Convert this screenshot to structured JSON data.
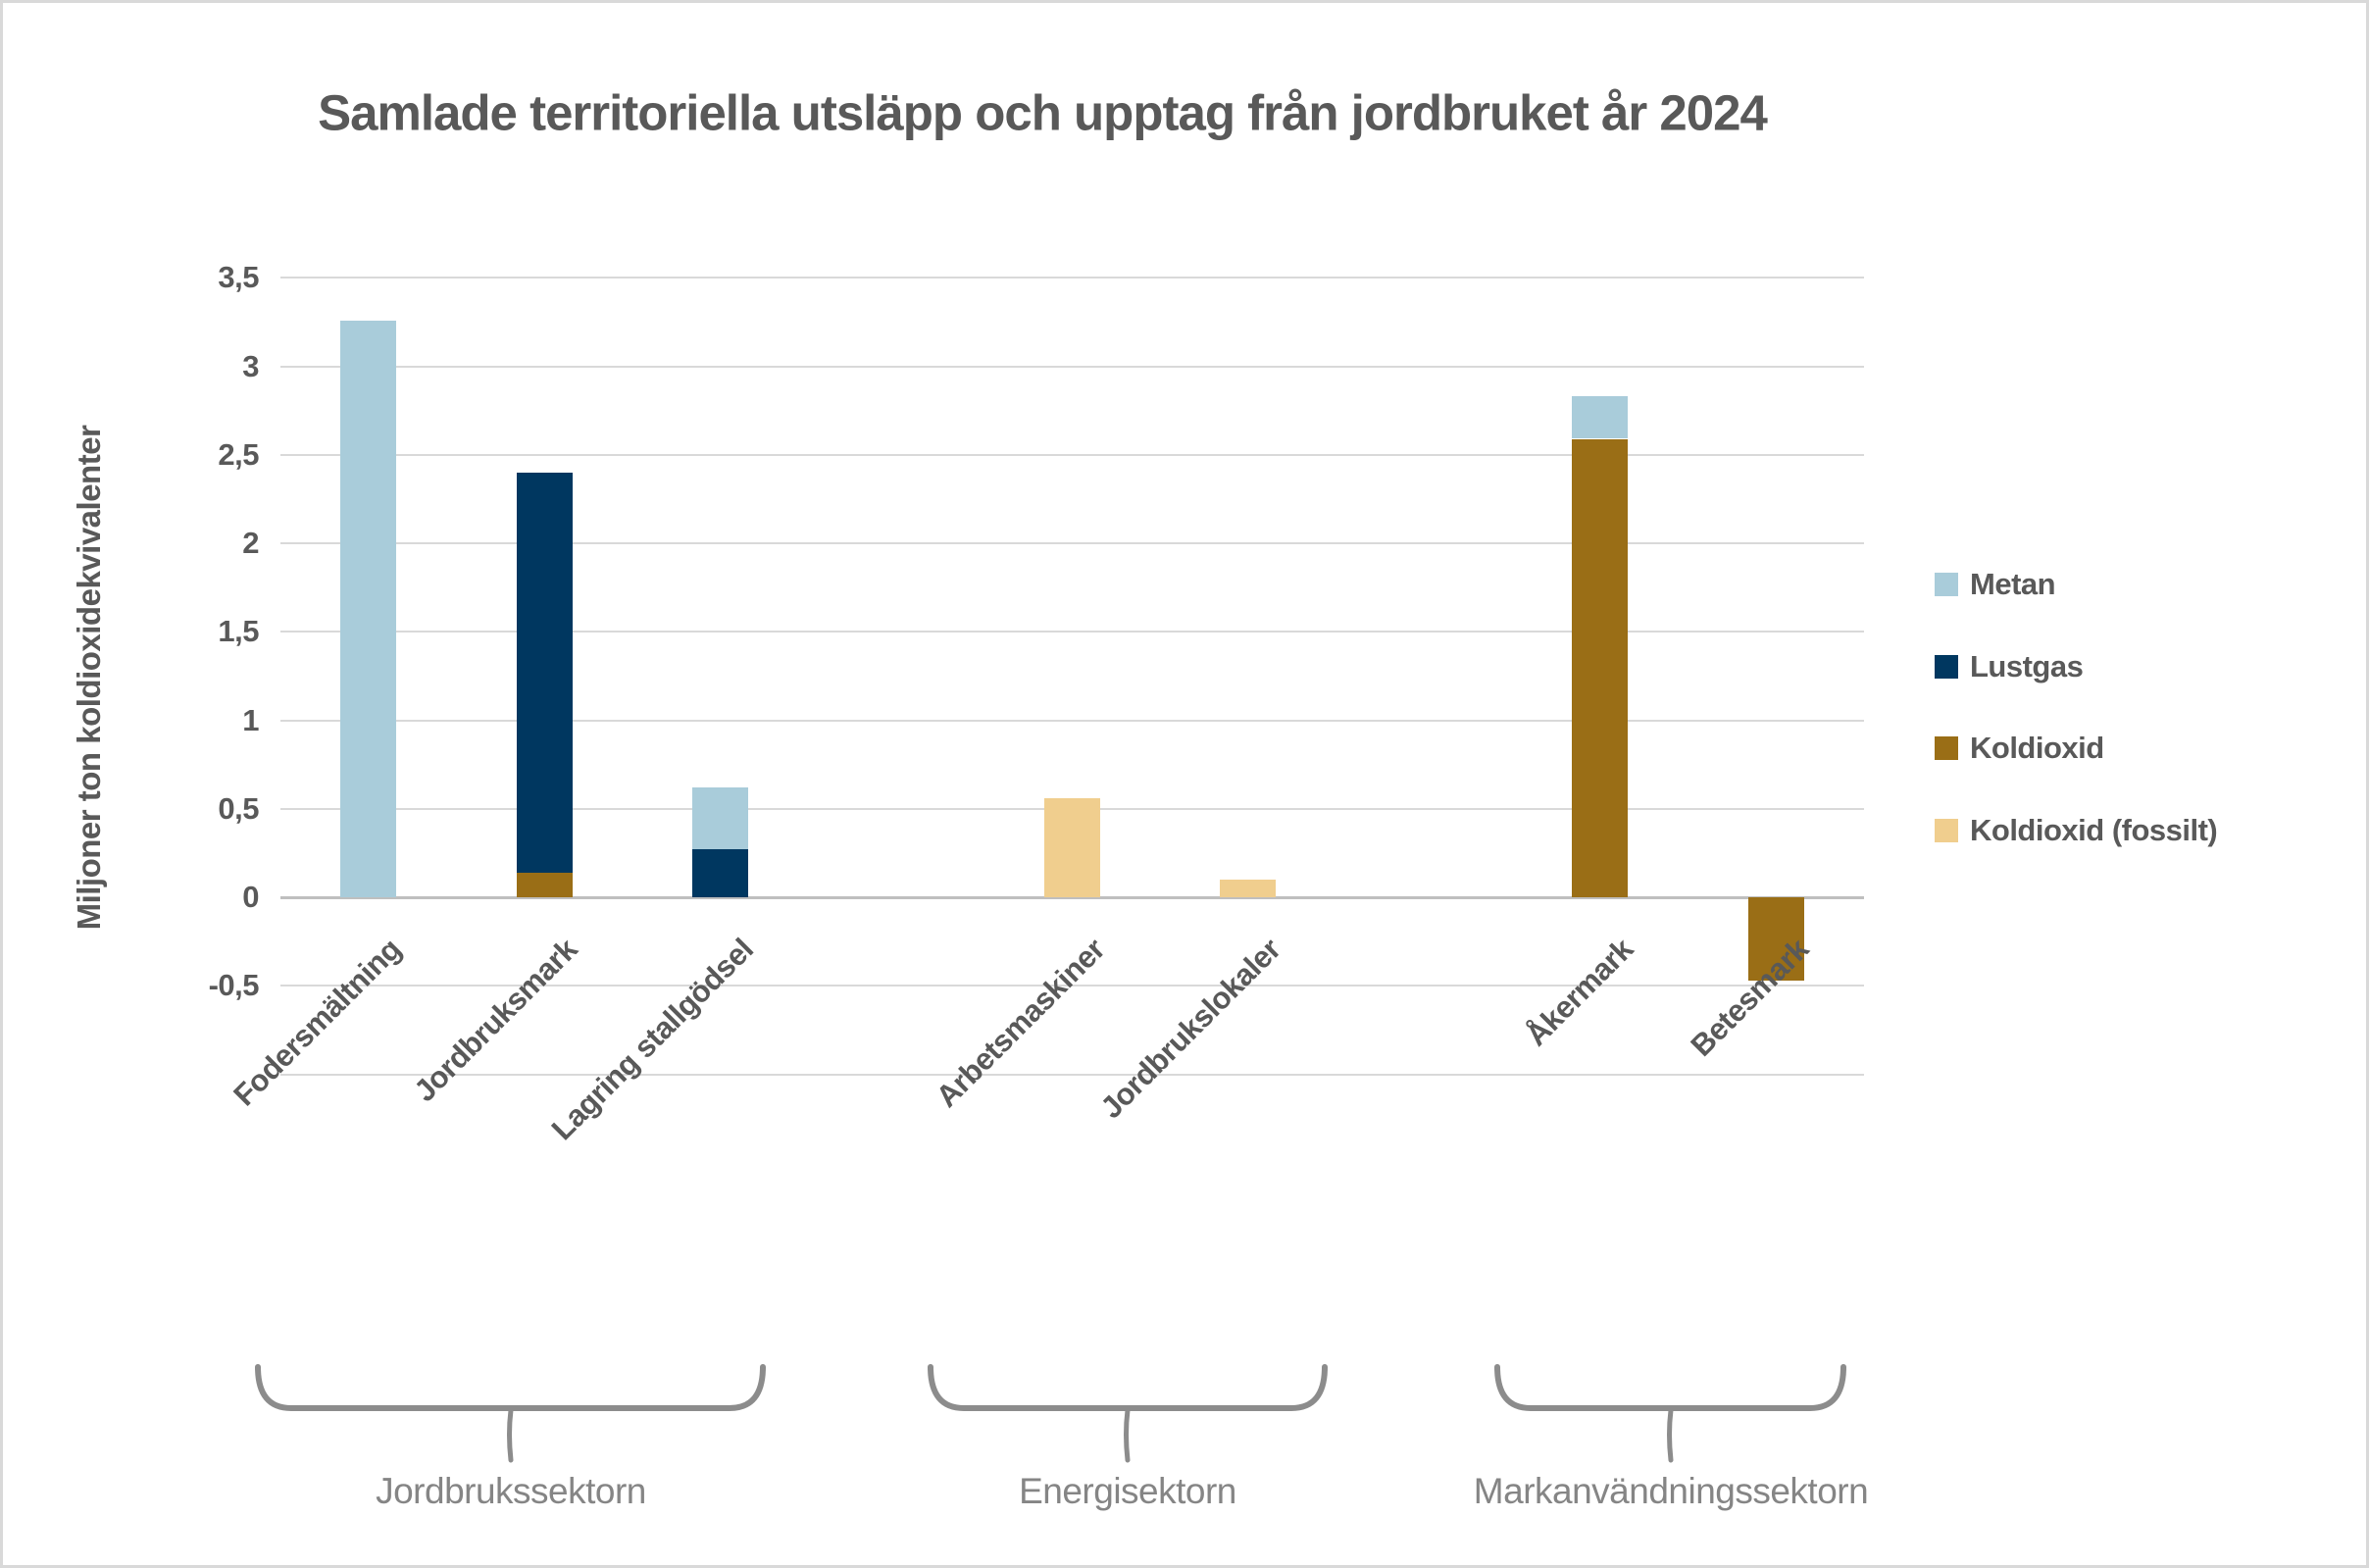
{
  "window": {
    "background": "#FFFFFF",
    "border_color": "#D9D9D9"
  },
  "title": "Samlade territoriella utsläpp och upptag från jordbruket år 2024",
  "y_axis": {
    "title": "Miljoner ton koldioxidekvivalenter",
    "tick_labels": [
      "3,5",
      "3",
      "2,5",
      "2",
      "1,5",
      "1",
      "0,5",
      "0",
      "-0,5"
    ],
    "max": 3.5,
    "min": -1,
    "step": 0.5,
    "label_color": "#595959",
    "gridline_color": "#D9D9D9",
    "zero_line_color": "#BFBFBF"
  },
  "legend": {
    "position": "right",
    "items": [
      {
        "label": "Metan",
        "color": "#A9CCDA"
      },
      {
        "label": "Lustgas",
        "color": "#003760"
      },
      {
        "label": "Koldioxid",
        "color": "#9A6E16"
      },
      {
        "label": "Koldioxid (fossilt)",
        "color": "#F0CE8E"
      }
    ]
  },
  "sector_groups": [
    {
      "label": "Jordbrukssektorn",
      "categories": [
        "Fodersmältning",
        "Jordbruksmark",
        "Lagring stallgödsel"
      ]
    },
    {
      "label": "Energisektorn",
      "categories": [
        "Arbetsmaskiner",
        "Jordbrukslokaler"
      ]
    },
    {
      "label": "Markanvändningssektorn",
      "categories": [
        "Åkermark",
        "Betesmark"
      ]
    }
  ],
  "chart_data": {
    "type": "bar",
    "stacked": true,
    "title": "Samlade territoriella utsläpp och upptag från jordbruket år 2024",
    "ylabel": "Miljoner ton koldioxidekvivalenter",
    "ylim": [
      -1,
      3.5
    ],
    "grid": true,
    "legend_position": "right",
    "categories": [
      "Fodersmältning",
      "Jordbruksmark",
      "Lagring stallgödsel",
      "Arbetsmaskiner",
      "Jordbrukslokaler",
      "Åkermark",
      "Betesmark"
    ],
    "series": [
      {
        "name": "Metan",
        "color": "#A9CCDA",
        "values": [
          3.26,
          0,
          0.35,
          0,
          0,
          0.24,
          0
        ]
      },
      {
        "name": "Lustgas",
        "color": "#003760",
        "values": [
          0,
          2.26,
          0.27,
          0,
          0,
          0,
          0
        ]
      },
      {
        "name": "Koldioxid",
        "color": "#9A6E16",
        "values": [
          0,
          0.14,
          0,
          0,
          0,
          2.59,
          -0.47
        ]
      },
      {
        "name": "Koldioxid (fossilt)",
        "color": "#F0CE8E",
        "values": [
          0,
          0,
          0,
          0.56,
          0.1,
          0,
          0
        ]
      }
    ],
    "stack_order_bottom_to_top": [
      "Koldioxid (fossilt)",
      "Koldioxid",
      "Lustgas",
      "Metan"
    ],
    "category_totals": [
      3.26,
      2.4,
      0.62,
      0.56,
      0.1,
      2.83,
      -0.47
    ]
  }
}
